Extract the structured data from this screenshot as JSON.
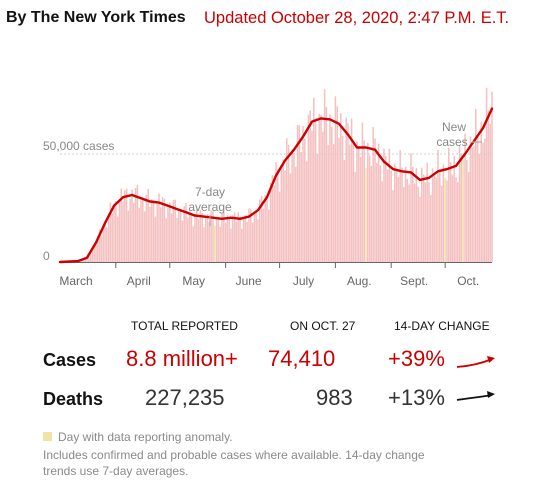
{
  "header": {
    "byline": "By The New York Times",
    "updated": "Updated October 28, 2020, 2:47 P.M. E.T."
  },
  "chart_data": {
    "type": "bar",
    "title": "",
    "xlabel": "",
    "ylabel": "",
    "ylim": [
      0,
      75000
    ],
    "y_ticks": [
      {
        "value": 0,
        "label": "0"
      },
      {
        "value": 50000,
        "label": "50,000 cases"
      }
    ],
    "months": [
      "March",
      "April",
      "May",
      "June",
      "July",
      "Aug.",
      "Sept.",
      "Oct."
    ],
    "x_range_days": [
      0,
      240
    ],
    "month_start_days": [
      0,
      31,
      61,
      92,
      122,
      153,
      184,
      214
    ],
    "series": [
      {
        "name": "7-day average",
        "curve": [
          [
            0,
            0
          ],
          [
            10,
            400
          ],
          [
            15,
            2000
          ],
          [
            20,
            9000
          ],
          [
            25,
            18000
          ],
          [
            30,
            26000
          ],
          [
            35,
            30000
          ],
          [
            40,
            31000
          ],
          [
            45,
            29500
          ],
          [
            50,
            28000
          ],
          [
            55,
            27500
          ],
          [
            60,
            26000
          ],
          [
            65,
            24500
          ],
          [
            70,
            23000
          ],
          [
            75,
            21500
          ],
          [
            80,
            21000
          ],
          [
            85,
            20500
          ],
          [
            90,
            20000
          ],
          [
            95,
            20500
          ],
          [
            100,
            20000
          ],
          [
            105,
            21000
          ],
          [
            110,
            24000
          ],
          [
            115,
            30000
          ],
          [
            120,
            40000
          ],
          [
            125,
            47000
          ],
          [
            130,
            52000
          ],
          [
            135,
            58000
          ],
          [
            140,
            65000
          ],
          [
            145,
            66500
          ],
          [
            150,
            66000
          ],
          [
            155,
            64000
          ],
          [
            160,
            59000
          ],
          [
            165,
            53000
          ],
          [
            170,
            53000
          ],
          [
            175,
            52000
          ],
          [
            180,
            46500
          ],
          [
            185,
            43000
          ],
          [
            190,
            42000
          ],
          [
            195,
            41500
          ],
          [
            200,
            38000
          ],
          [
            205,
            39000
          ],
          [
            210,
            42000
          ],
          [
            215,
            43000
          ],
          [
            220,
            44500
          ],
          [
            225,
            50000
          ],
          [
            230,
            56000
          ],
          [
            235,
            62000
          ],
          [
            240,
            71000
          ]
        ]
      }
    ],
    "annotations": [
      {
        "text": "New cases",
        "lines": [
          "New",
          "cases"
        ]
      },
      {
        "text": "7-day average",
        "lines": [
          "7-day",
          "average"
        ]
      }
    ],
    "colors": {
      "line": "#cc0000",
      "bars": "#f4c0c0",
      "anomaly": "#f3e2a6",
      "axis": "#666666"
    }
  },
  "stats": {
    "headers": {
      "total": "TOTAL REPORTED",
      "on_date": "ON OCT. 27",
      "change": "14-DAY CHANGE"
    },
    "rows": [
      {
        "label": "Cases",
        "total": "8.8 million+",
        "on_date": "74,410",
        "change": "+39%",
        "trend": "up"
      },
      {
        "label": "Deaths",
        "total": "227,235",
        "on_date": "983",
        "change": "+13%",
        "trend": "up"
      }
    ]
  },
  "notes": {
    "anomaly": "Day with data reporting anomaly.",
    "footnote_line1": "Includes confirmed and probable cases where available. 14-day change",
    "footnote_line2": "trends use 7-day averages."
  }
}
